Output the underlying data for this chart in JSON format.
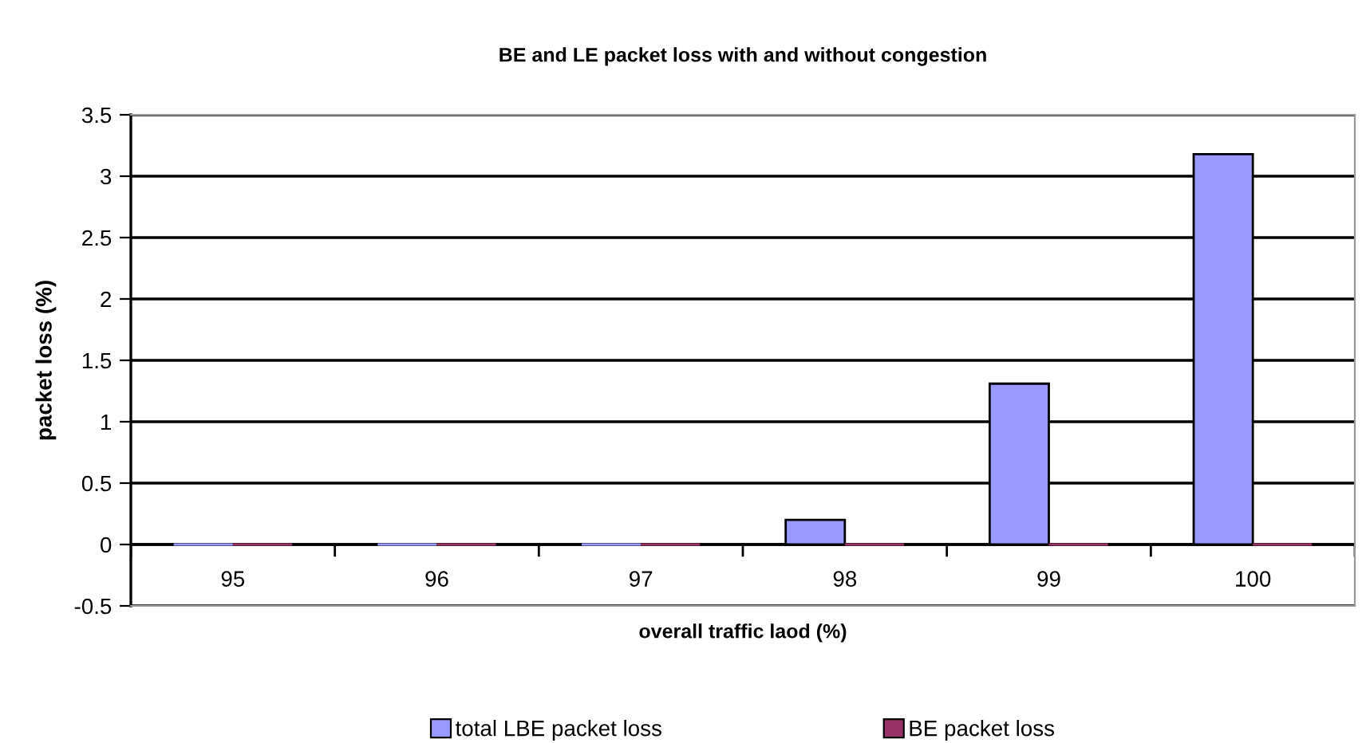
{
  "chart_data": {
    "type": "bar",
    "title": "BE and LE packet loss with and without congestion",
    "xlabel": "overall traffic laod (%)",
    "ylabel": "packet loss (%)",
    "categories": [
      "95",
      "96",
      "97",
      "98",
      "99",
      "100"
    ],
    "series": [
      {
        "name": "total LBE packet loss",
        "color": "#9999ff",
        "values": [
          0,
          0,
          0,
          0.2,
          1.31,
          3.18
        ]
      },
      {
        "name": "BE packet loss",
        "color": "#993366",
        "values": [
          0,
          0,
          0,
          0,
          0,
          0
        ]
      }
    ],
    "ylim": [
      -0.5,
      3.5
    ],
    "yticks": [
      -0.5,
      0,
      0.5,
      1,
      1.5,
      2,
      2.5,
      3,
      3.5
    ],
    "grid": "y",
    "legend": "bottom"
  }
}
